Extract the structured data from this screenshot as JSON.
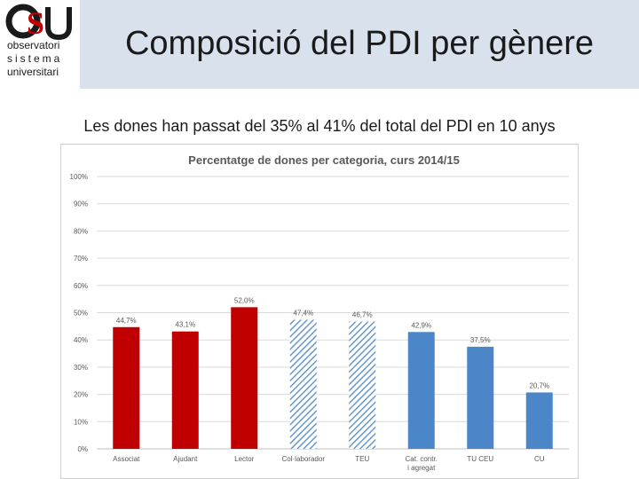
{
  "header": {
    "logo_line1": "observatori",
    "logo_line2": "sistema",
    "logo_line3": "universitari",
    "title": "Composició del PDI per gènere"
  },
  "subtitle": "Les dones han passat del 35% al 41% del total del PDI en 10 anys",
  "colors": {
    "title_bar": "#d9e1ed",
    "red_bar": "#c00000",
    "blue_bar": "#4a86c8",
    "hatch": "#4a86c8"
  },
  "chart_data": {
    "type": "bar",
    "title": "Percentatge de dones per categoria, curs 2014/15",
    "ylim": [
      0,
      100
    ],
    "y_ticks": [
      "0%",
      "10%",
      "20%",
      "30%",
      "40%",
      "50%",
      "60%",
      "70%",
      "80%",
      "90%",
      "100%"
    ],
    "grid": true,
    "legend": "none",
    "categories": [
      {
        "label": "Associat",
        "value": 44.7,
        "value_label": "44,7%",
        "fill": "red"
      },
      {
        "label": "Ajudant",
        "value": 43.1,
        "value_label": "43,1%",
        "fill": "red"
      },
      {
        "label": "Lector",
        "value": 52.0,
        "value_label": "52,0%",
        "fill": "red"
      },
      {
        "label": "Col·laborador",
        "value": 47.4,
        "value_label": "47,4%",
        "fill": "hatch"
      },
      {
        "label": "TEU",
        "value": 46.7,
        "value_label": "46,7%",
        "fill": "hatch"
      },
      {
        "label": "Cat. contr. i agregat",
        "value": 42.9,
        "value_label": "42,9%",
        "fill": "blue"
      },
      {
        "label": "TU CEU",
        "value": 37.5,
        "value_label": "37,5%",
        "fill": "blue"
      },
      {
        "label": "CU",
        "value": 20.7,
        "value_label": "20,7%",
        "fill": "blue"
      }
    ]
  }
}
